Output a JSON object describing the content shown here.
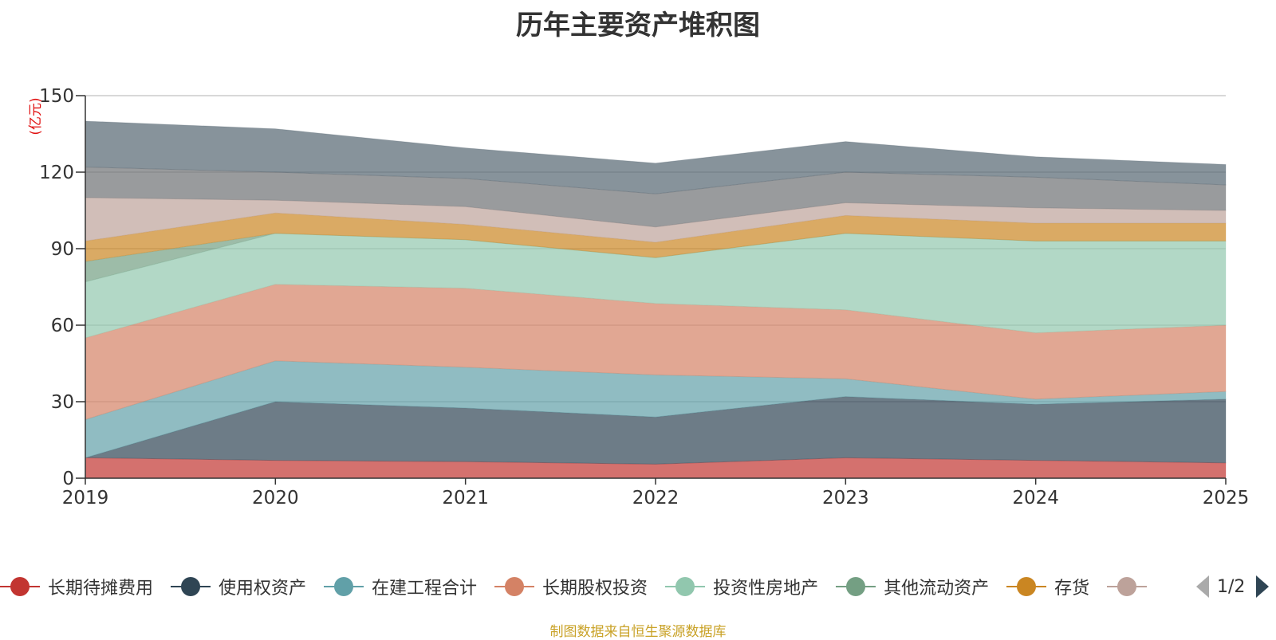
{
  "source_note": "制图数据来自恒生聚源数据库",
  "legend_page": "1/2",
  "legend": [
    {
      "name": "长期待摊费用",
      "color": "#c23531"
    },
    {
      "name": "使用权资产",
      "color": "#2f4554"
    },
    {
      "name": "在建工程合计",
      "color": "#61a0a8"
    },
    {
      "name": "长期股权投资",
      "color": "#d48265"
    },
    {
      "name": "投资性房地产",
      "color": "#91c7ae"
    },
    {
      "name": "其他流动资产",
      "color": "#749f83"
    },
    {
      "name": "存货",
      "color": "#ca8622"
    },
    {
      "name": "",
      "color": "#bda29a"
    }
  ],
  "chart_data": {
    "type": "area",
    "stacked": true,
    "title": "历年主要资产堆积图",
    "ylabel": "(亿元)",
    "x": [
      "2019",
      "2020",
      "2021",
      "2022",
      "2023",
      "2024",
      "2025"
    ],
    "ylim": [
      0,
      150
    ],
    "yticks": [
      0,
      30,
      60,
      90,
      120,
      150
    ],
    "series": [
      {
        "name": "长期待摊费用",
        "color": "#c23531",
        "values": [
          8,
          7,
          6.5,
          5.5,
          8,
          7,
          6
        ]
      },
      {
        "name": "使用权资产",
        "color": "#2f4554",
        "values": [
          0,
          23,
          21,
          18.5,
          24,
          22,
          25
        ]
      },
      {
        "name": "在建工程合计",
        "color": "#61a0a8",
        "values": [
          15,
          16,
          16,
          16.5,
          7,
          2,
          3
        ]
      },
      {
        "name": "长期股权投资",
        "color": "#d48265",
        "values": [
          32,
          30,
          31,
          28,
          27,
          26,
          26
        ]
      },
      {
        "name": "投资性房地产",
        "color": "#91c7ae",
        "values": [
          22,
          20,
          19,
          18,
          30,
          36,
          33
        ]
      },
      {
        "name": "其他流动资产",
        "color": "#749f83",
        "values": [
          8,
          0,
          0,
          0,
          0,
          0,
          0
        ]
      },
      {
        "name": "存货",
        "color": "#ca8622",
        "values": [
          8,
          8,
          6,
          6,
          7,
          7,
          7
        ]
      },
      {
        "name": "",
        "color": "#bda29a",
        "values": [
          17,
          5,
          7,
          6,
          5,
          6,
          5
        ]
      },
      {
        "name": "",
        "color": "#6e7074",
        "values": [
          12,
          11,
          11,
          13,
          12,
          12,
          10
        ]
      },
      {
        "name": "",
        "color": "#546570",
        "values": [
          18,
          17,
          12,
          12,
          12,
          8,
          8
        ]
      }
    ]
  }
}
